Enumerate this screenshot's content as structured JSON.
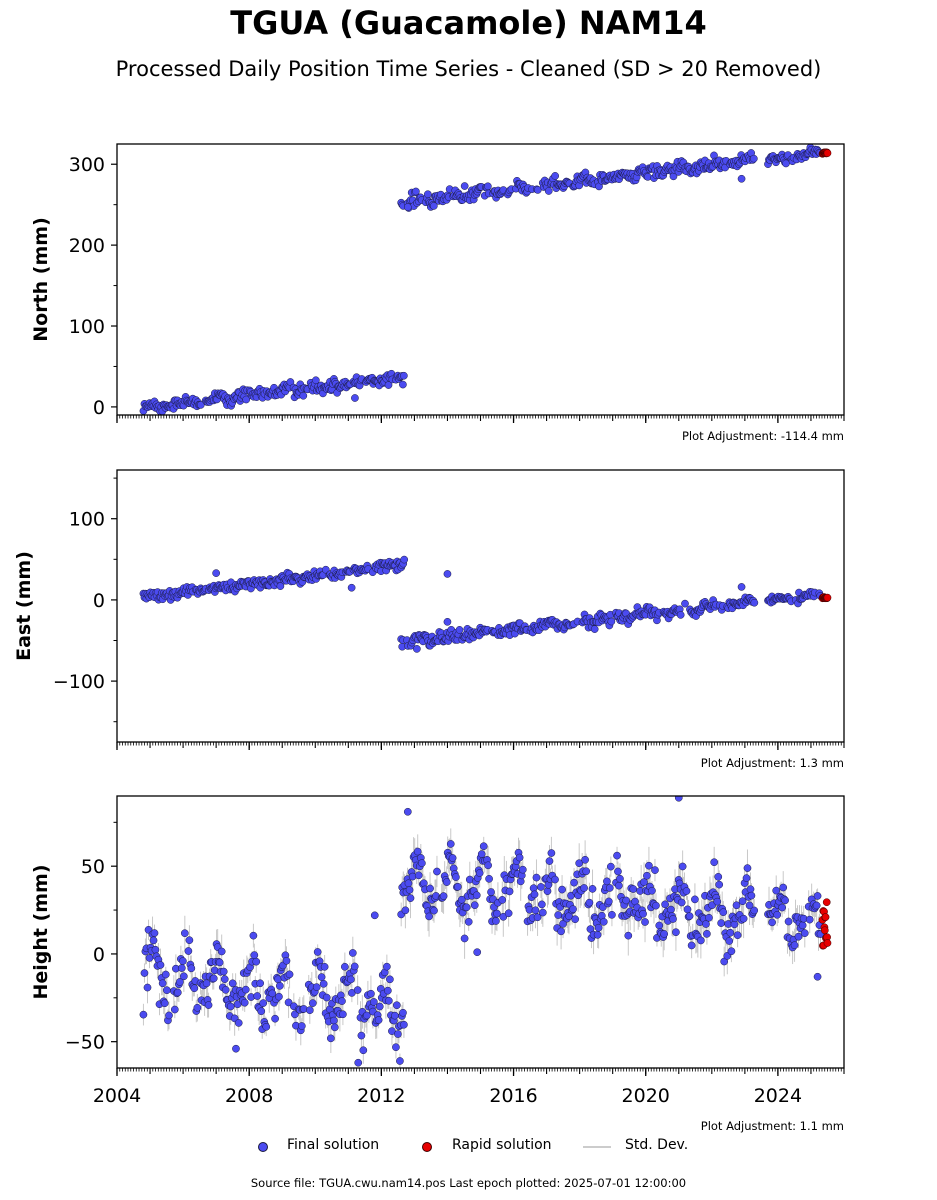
{
  "title": "TGUA (Guacamole) NAM14",
  "subtitle": "Processed Daily Position Time Series - Cleaned (SD > 20 Removed)",
  "footer": "Source file: TGUA.cwu.nam14.pos  Last epoch plotted: 2025-07-01 12:00:00",
  "legend": {
    "final": "Final solution",
    "rapid": "Rapid solution",
    "std": "Std. Dev."
  },
  "colors": {
    "final": "#4b4bf0",
    "rapid": "#e60000",
    "std": "#c8c8c8",
    "edge": "#1a1a40"
  },
  "chart_data": [
    {
      "type": "scatter",
      "ylabel": "North (mm)",
      "adjustment": "Plot Adjustment: -114.4 mm",
      "xlim": [
        2004.0,
        2026.0
      ],
      "ylim": [
        -10,
        325
      ],
      "yticks": [
        0,
        100,
        200,
        300
      ],
      "xticks": [
        2004,
        2008,
        2012,
        2016,
        2020,
        2024
      ],
      "segments": [
        {
          "x0": 2004.8,
          "x1": 2012.7,
          "y0": -1,
          "y1": 36,
          "noise": 3.5,
          "seasonal": 1.5,
          "sd": 2.5
        },
        {
          "x0": 2012.6,
          "x1": 2023.3,
          "y0": 252,
          "y1": 306,
          "noise": 4,
          "seasonal": 2,
          "sd": 3
        },
        {
          "x0": 2023.7,
          "x1": 2025.3,
          "y0": 306,
          "y1": 314,
          "noise": 3,
          "seasonal": 1.5,
          "sd": 2.5
        }
      ],
      "outliers": [
        [
          2022.9,
          282
        ],
        [
          2012.8,
          247
        ],
        [
          2011.2,
          11
        ]
      ],
      "rapid": {
        "x0": 2025.35,
        "x1": 2025.5,
        "y0": 313,
        "y1": 315,
        "noise": 1
      }
    },
    {
      "type": "scatter",
      "ylabel": "East (mm)",
      "adjustment": "Plot Adjustment: 1.3 mm",
      "xlim": [
        2004.0,
        2026.0
      ],
      "ylim": [
        -175,
        160
      ],
      "yticks": [
        -100,
        0,
        100
      ],
      "xticks": [
        2004,
        2008,
        2012,
        2016,
        2020,
        2024
      ],
      "segments": [
        {
          "x0": 2004.8,
          "x1": 2012.7,
          "y0": 2,
          "y1": 44,
          "noise": 3,
          "seasonal": 1.5,
          "sd": 2.5
        },
        {
          "x0": 2012.6,
          "x1": 2023.3,
          "y0": -52,
          "y1": -2,
          "noise": 3.5,
          "seasonal": 2,
          "sd": 3
        },
        {
          "x0": 2023.7,
          "x1": 2025.3,
          "y0": 0,
          "y1": 5,
          "noise": 2.5,
          "seasonal": 1.5,
          "sd": 2.5
        }
      ],
      "outliers": [
        [
          2014.0,
          32
        ],
        [
          2011.1,
          15
        ],
        [
          2007.0,
          33
        ],
        [
          2022.9,
          16
        ],
        [
          2014.0,
          -27
        ]
      ],
      "rapid": {
        "x0": 2025.35,
        "x1": 2025.5,
        "y0": 2,
        "y1": 3,
        "noise": 0.8
      }
    },
    {
      "type": "scatter",
      "ylabel": "Height (mm)",
      "adjustment": "Plot Adjustment: 1.1 mm",
      "xlim": [
        2004.0,
        2026.0
      ],
      "ylim": [
        -65,
        90
      ],
      "yticks": [
        -50,
        0,
        50
      ],
      "xticks": [
        2004,
        2008,
        2012,
        2016,
        2020,
        2024
      ],
      "xticklabels": [
        "2004",
        "2008",
        "2012",
        "2016",
        "2020",
        "2024"
      ],
      "segments": [
        {
          "x0": 2004.8,
          "x1": 2012.7,
          "y0": -12,
          "y1": -30,
          "noise": 6.5,
          "seasonal": 13,
          "sd": 7
        },
        {
          "x0": 2012.6,
          "x1": 2023.3,
          "y0": 42,
          "y1": 22,
          "noise": 7,
          "seasonal": 12,
          "sd": 8
        },
        {
          "x0": 2023.7,
          "x1": 2025.3,
          "y0": 22,
          "y1": 16,
          "noise": 6,
          "seasonal": 10,
          "sd": 7
        }
      ],
      "outliers": [
        [
          2021.0,
          89
        ],
        [
          2012.8,
          81
        ],
        [
          2011.8,
          22
        ],
        [
          2014.9,
          1
        ],
        [
          2025.2,
          -13
        ],
        [
          2011.3,
          -62
        ],
        [
          2007.6,
          -54
        ]
      ],
      "rapid": {
        "x0": 2025.35,
        "x1": 2025.5,
        "y0": 5,
        "y1": 30,
        "noise": 4
      }
    }
  ]
}
